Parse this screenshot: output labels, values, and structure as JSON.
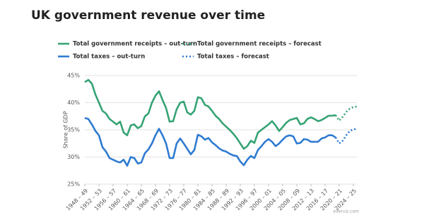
{
  "chart_data": {
    "type": "line",
    "title": "UK government revenue over time",
    "ylabel": "Share of GDP",
    "source": "everviz.com",
    "legend": "top-left",
    "grid": true,
    "xlim": [
      1948,
      2025
    ],
    "ylim": [
      25,
      45
    ],
    "yticks": [
      {
        "value": 25,
        "label": "25%"
      },
      {
        "value": 30,
        "label": "30%"
      },
      {
        "value": 35,
        "label": "35%"
      },
      {
        "value": 40,
        "label": "40%"
      },
      {
        "value": 45,
        "label": "45%"
      }
    ],
    "xticks": [
      {
        "value": 1948,
        "label": "1948 – 49"
      },
      {
        "value": 1952,
        "label": "1952 – 53"
      },
      {
        "value": 1956,
        "label": "1956 – 57"
      },
      {
        "value": 1960,
        "label": "1960 – 61"
      },
      {
        "value": 1964,
        "label": "1964 – 65"
      },
      {
        "value": 1968,
        "label": "1968 – 69"
      },
      {
        "value": 1972,
        "label": "1972 – 73"
      },
      {
        "value": 1976,
        "label": "1976 – 77"
      },
      {
        "value": 1980,
        "label": "1980 – 81"
      },
      {
        "value": 1984,
        "label": "1984 – 85"
      },
      {
        "value": 1988,
        "label": "1988 – 89"
      },
      {
        "value": 1992,
        "label": "1992 – 93"
      },
      {
        "value": 1996,
        "label": "1996 – 97"
      },
      {
        "value": 2000,
        "label": "2000 – 01"
      },
      {
        "value": 2004,
        "label": "2004 – 05"
      },
      {
        "value": 2008,
        "label": "2008 – 09"
      },
      {
        "value": 2012,
        "label": "2012 – 13"
      },
      {
        "value": 2016,
        "label": "2016 – 17"
      },
      {
        "value": 2020,
        "label": "2020 – 21"
      },
      {
        "value": 2024,
        "label": "2024 – 25"
      }
    ],
    "x": [
      1948,
      1949,
      1950,
      1951,
      1952,
      1953,
      1954,
      1955,
      1956,
      1957,
      1958,
      1959,
      1960,
      1961,
      1962,
      1963,
      1964,
      1965,
      1966,
      1967,
      1968,
      1969,
      1970,
      1971,
      1972,
      1973,
      1974,
      1975,
      1976,
      1977,
      1978,
      1979,
      1980,
      1981,
      1982,
      1983,
      1984,
      1985,
      1986,
      1987,
      1988,
      1989,
      1990,
      1991,
      1992,
      1993,
      1994,
      1995,
      1996,
      1997,
      1998,
      1999,
      2000,
      2001,
      2002,
      2003,
      2004,
      2005,
      2006,
      2007,
      2008,
      2009,
      2010,
      2011,
      2012,
      2013,
      2014,
      2015,
      2016,
      2017,
      2018,
      2019,
      2020,
      2021,
      2022,
      2023,
      2024,
      2025
    ],
    "series": [
      {
        "name": "Total government receipts – out-turn",
        "color": "#36a374",
        "dashed": false,
        "values": [
          43.8,
          44.2,
          43.5,
          41.5,
          40.0,
          38.5,
          38.0,
          37.0,
          36.5,
          36.0,
          36.5,
          34.5,
          34.0,
          35.8,
          36.0,
          35.3,
          35.7,
          37.5,
          38.0,
          40.0,
          41.3,
          42.1,
          40.5,
          39.0,
          36.5,
          36.6,
          38.8,
          40.0,
          40.2,
          38.2,
          37.8,
          38.5,
          41.0,
          40.8,
          39.6,
          39.3,
          38.5,
          37.6,
          37.0,
          36.2,
          35.6,
          35.0,
          34.3,
          33.5,
          32.5,
          31.5,
          32.0,
          33.0,
          32.6,
          34.5,
          35.0,
          35.5,
          36.0,
          36.6,
          35.8,
          34.8,
          35.5,
          36.3,
          36.8,
          37.0,
          37.2,
          36.0,
          36.2,
          37.0,
          37.3,
          37.0,
          36.6,
          36.8,
          37.2,
          37.6,
          37.6,
          37.7,
          null,
          null,
          null,
          null,
          null,
          null
        ]
      },
      {
        "name": "Total government receipts – forecast",
        "color": "#36a374",
        "dashed": true,
        "values": [
          null,
          null,
          null,
          null,
          null,
          null,
          null,
          null,
          null,
          null,
          null,
          null,
          null,
          null,
          null,
          null,
          null,
          null,
          null,
          null,
          null,
          null,
          null,
          null,
          null,
          null,
          null,
          null,
          null,
          null,
          null,
          null,
          null,
          null,
          null,
          null,
          null,
          null,
          null,
          null,
          null,
          null,
          null,
          null,
          null,
          null,
          null,
          null,
          null,
          null,
          null,
          null,
          null,
          null,
          null,
          null,
          null,
          null,
          null,
          null,
          null,
          null,
          null,
          null,
          null,
          null,
          null,
          null,
          null,
          null,
          null,
          37.7,
          36.7,
          37.4,
          38.3,
          38.9,
          39.2,
          39.3
        ]
      },
      {
        "name": "Total taxes – out-turn",
        "color": "#2f7bd1",
        "dashed": false,
        "values": [
          37.2,
          37.0,
          36.0,
          34.8,
          34.0,
          31.8,
          31.0,
          29.8,
          29.5,
          29.2,
          29.0,
          29.5,
          28.4,
          30.0,
          29.8,
          28.8,
          29.0,
          30.7,
          31.4,
          32.5,
          34.0,
          35.2,
          34.0,
          32.5,
          29.8,
          29.8,
          32.5,
          33.4,
          32.5,
          31.5,
          30.5,
          31.3,
          34.1,
          33.8,
          33.2,
          33.5,
          32.7,
          32.2,
          31.6,
          31.2,
          31.0,
          30.6,
          30.3,
          30.2,
          29.2,
          28.5,
          29.5,
          30.2,
          29.8,
          31.3,
          32.0,
          32.8,
          33.3,
          32.8,
          32.0,
          32.5,
          33.2,
          33.8,
          34.0,
          33.8,
          32.5,
          32.6,
          33.3,
          33.2,
          32.8,
          32.8,
          32.8,
          33.4,
          33.6,
          34.0,
          34.0,
          33.6,
          null,
          null,
          null,
          null,
          null,
          null
        ]
      },
      {
        "name": "Total taxes – forecast",
        "color": "#2f7bd1",
        "dashed": true,
        "values": [
          null,
          null,
          null,
          null,
          null,
          null,
          null,
          null,
          null,
          null,
          null,
          null,
          null,
          null,
          null,
          null,
          null,
          null,
          null,
          null,
          null,
          null,
          null,
          null,
          null,
          null,
          null,
          null,
          null,
          null,
          null,
          null,
          null,
          null,
          null,
          null,
          null,
          null,
          null,
          null,
          null,
          null,
          null,
          null,
          null,
          null,
          null,
          null,
          null,
          null,
          null,
          null,
          null,
          null,
          null,
          null,
          null,
          null,
          null,
          null,
          null,
          null,
          null,
          null,
          null,
          null,
          null,
          null,
          null,
          null,
          null,
          33.6,
          32.5,
          33.0,
          34.0,
          34.8,
          35.1,
          35.2
        ]
      }
    ]
  }
}
